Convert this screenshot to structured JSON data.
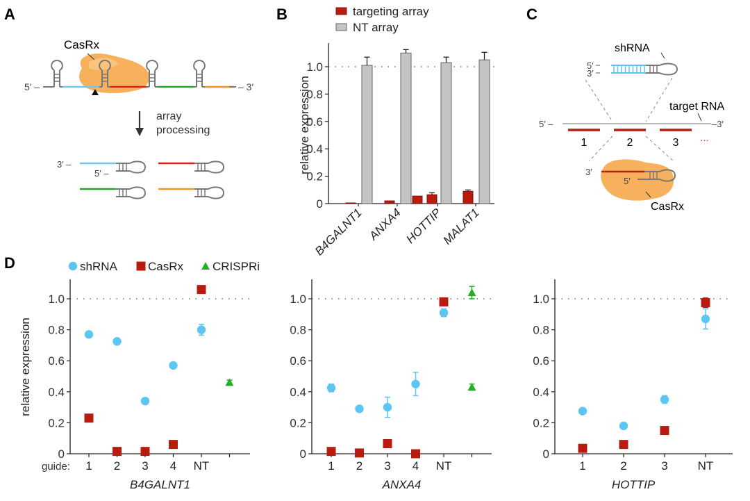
{
  "panels": {
    "A": {
      "label": "A",
      "protein": "CasRx",
      "five_prime": "5′ –",
      "three_prime": "– 3′",
      "arrow_text_1": "array",
      "arrow_text_2": "processing",
      "proc_three": "3′ –",
      "proc_five": "5′ –",
      "colors": {
        "protein": "#f6a94a",
        "blue": "#74c6ef",
        "red": "#d4231a",
        "green": "#2aa12a",
        "orange": "#f3941e",
        "stem": "#777777"
      }
    },
    "C": {
      "label": "C",
      "shrna": "shRNA",
      "five": "5′",
      "three": "3′",
      "target": "target RNA",
      "target_five": "5′ –",
      "target_three": "–3′",
      "sites": [
        "1",
        "2",
        "3"
      ],
      "ellipsis": "···",
      "casrx": "CasRx",
      "bottom_three": "3′",
      "bottom_five": "5′"
    },
    "D": {
      "label": "D",
      "guide_prefix": "guide:"
    }
  },
  "chart_data": [
    {
      "id": "B",
      "type": "bar",
      "title": "",
      "xlabel": "",
      "ylabel": "relative expression",
      "ylim": [
        0,
        1.15
      ],
      "yticks": [
        "0",
        "0.2",
        "0.4",
        "0.6",
        "0.8",
        "1.0"
      ],
      "reference_line": 1.0,
      "categories": [
        "B4GALNT1",
        "ANXA4",
        "HOTTIP",
        "MALAT1"
      ],
      "legend": [
        {
          "name": "targeting array",
          "color": "#b81c10"
        },
        {
          "name": "NT array",
          "color": "#c4c4c4"
        }
      ],
      "series": [
        {
          "name": "targeting array",
          "values": [
            [
              0.005
            ],
            [
              0.02
            ],
            [
              0.055,
              0.065
            ],
            [
              0.09
            ]
          ],
          "errors": [
            [
              0.003
            ],
            [
              0.003
            ],
            [
              0.003,
              0.015
            ],
            [
              0.01
            ]
          ]
        },
        {
          "name": "NT array",
          "values": [
            1.01,
            1.1,
            1.03,
            1.05
          ],
          "errors": [
            0.06,
            0.025,
            0.04,
            0.055
          ]
        }
      ]
    },
    {
      "id": "D1",
      "type": "scatter",
      "gene": "B4GALNT1",
      "ylabel": "relative expression",
      "ylim": [
        0,
        1.1
      ],
      "yticks": [
        "0",
        "0.2",
        "0.4",
        "0.6",
        "0.8",
        "1.0"
      ],
      "reference_line": 1.0,
      "categories": [
        "1",
        "2",
        "3",
        "4",
        "NT",
        ""
      ],
      "legend": [
        {
          "name": "shRNA",
          "marker": "circle",
          "color": "#5bc6f2"
        },
        {
          "name": "CasRx",
          "marker": "square",
          "color": "#b81c10"
        },
        {
          "name": "CRISPRi",
          "marker": "triangle",
          "color": "#22b022"
        }
      ],
      "series": [
        {
          "name": "shRNA",
          "points": [
            [
              0,
              0.77,
              0
            ],
            [
              1,
              0.725,
              0
            ],
            [
              2,
              0.34,
              0
            ],
            [
              3,
              0.57,
              0
            ],
            [
              4,
              0.8,
              0.035
            ]
          ]
        },
        {
          "name": "CasRx",
          "points": [
            [
              0,
              0.23,
              0
            ],
            [
              1,
              0.015,
              0
            ],
            [
              2,
              0.015,
              0
            ],
            [
              3,
              0.06,
              0
            ],
            [
              4,
              1.06,
              0.015
            ]
          ]
        },
        {
          "name": "CRISPRi",
          "points": [
            [
              5,
              0.46,
              0.015
            ]
          ]
        }
      ]
    },
    {
      "id": "D2",
      "type": "scatter",
      "gene": "ANXA4",
      "ylabel": "",
      "ylim": [
        0,
        1.1
      ],
      "yticks": [
        "0",
        "0.2",
        "0.4",
        "0.6",
        "0.8",
        "1.0"
      ],
      "reference_line": 1.0,
      "categories": [
        "1",
        "2",
        "3",
        "4",
        "NT",
        ""
      ],
      "series": [
        {
          "name": "shRNA",
          "points": [
            [
              0,
              0.425,
              0.025
            ],
            [
              1,
              0.29,
              0
            ],
            [
              2,
              0.3,
              0.065
            ],
            [
              3,
              0.45,
              0.075
            ],
            [
              4,
              0.91,
              0.025
            ]
          ]
        },
        {
          "name": "CasRx",
          "points": [
            [
              0,
              0.015,
              0
            ],
            [
              1,
              0.005,
              0
            ],
            [
              2,
              0.065,
              0
            ],
            [
              3,
              0.0,
              0
            ],
            [
              4,
              0.98,
              0
            ]
          ]
        },
        {
          "name": "CRISPRi",
          "points": [
            [
              5,
              1.04,
              0.04
            ],
            [
              5,
              0.43,
              0.02
            ]
          ]
        }
      ]
    },
    {
      "id": "D3",
      "type": "scatter",
      "gene": "HOTTIP",
      "ylabel": "",
      "ylim": [
        0,
        1.1
      ],
      "yticks": [
        "0",
        "0.2",
        "0.4",
        "0.6",
        "0.8",
        "1.0"
      ],
      "reference_line": 1.0,
      "categories": [
        "1",
        "2",
        "3",
        "NT"
      ],
      "series": [
        {
          "name": "shRNA",
          "points": [
            [
              0,
              0.275,
              0
            ],
            [
              1,
              0.18,
              0
            ],
            [
              2,
              0.35,
              0.025
            ],
            [
              3,
              0.87,
              0.065
            ]
          ]
        },
        {
          "name": "CasRx",
          "points": [
            [
              0,
              0.035,
              0
            ],
            [
              1,
              0.06,
              0
            ],
            [
              2,
              0.15,
              0
            ],
            [
              3,
              0.975,
              0.03
            ]
          ]
        }
      ]
    }
  ]
}
